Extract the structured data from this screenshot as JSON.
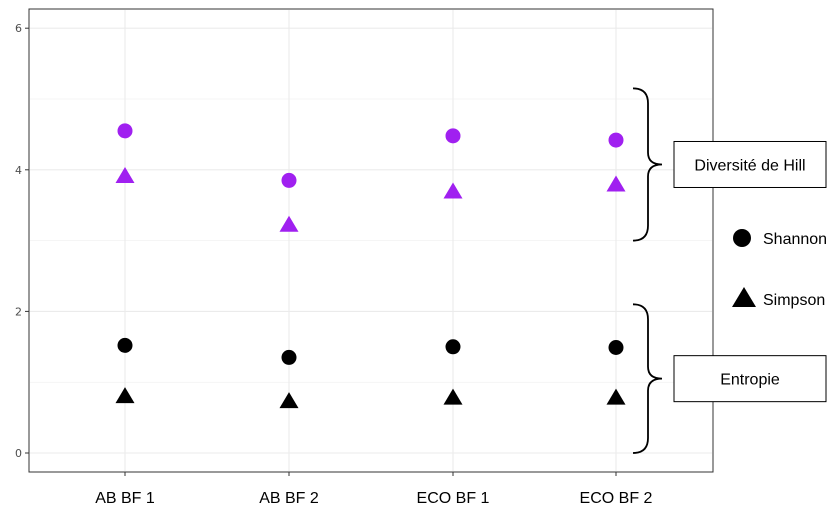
{
  "chart_data": {
    "type": "scatter",
    "categories": [
      "AB BF 1",
      "AB BF 2",
      "ECO BF 1",
      "ECO BF 2"
    ],
    "ylim": [
      0,
      6
    ],
    "yticks": [
      "0",
      "2",
      "4",
      "6"
    ],
    "grid": true,
    "series": [
      {
        "name": "Shannon",
        "group": "Diversité de Hill",
        "marker": "circle",
        "color": "#a020f0",
        "values": [
          4.55,
          3.85,
          4.48,
          4.42
        ]
      },
      {
        "name": "Simpson",
        "group": "Diversité de Hill",
        "marker": "triangle",
        "color": "#a020f0",
        "values": [
          3.9,
          3.21,
          3.68,
          3.78
        ]
      },
      {
        "name": "Shannon",
        "group": "Entropie",
        "marker": "circle",
        "color": "#000000",
        "values": [
          1.52,
          1.35,
          1.5,
          1.49
        ]
      },
      {
        "name": "Simpson",
        "group": "Entropie",
        "marker": "triangle",
        "color": "#000000",
        "values": [
          0.79,
          0.72,
          0.77,
          0.77
        ]
      }
    ],
    "annotations": [
      {
        "label": "Diversité de Hill",
        "span": [
          3.0,
          5.15
        ]
      },
      {
        "label": "Entropie",
        "span": [
          0,
          2.1
        ]
      }
    ],
    "legend": {
      "position": "right",
      "items": [
        {
          "label": "Shannon",
          "marker": "circle"
        },
        {
          "label": "Simpson",
          "marker": "triangle"
        }
      ]
    }
  }
}
